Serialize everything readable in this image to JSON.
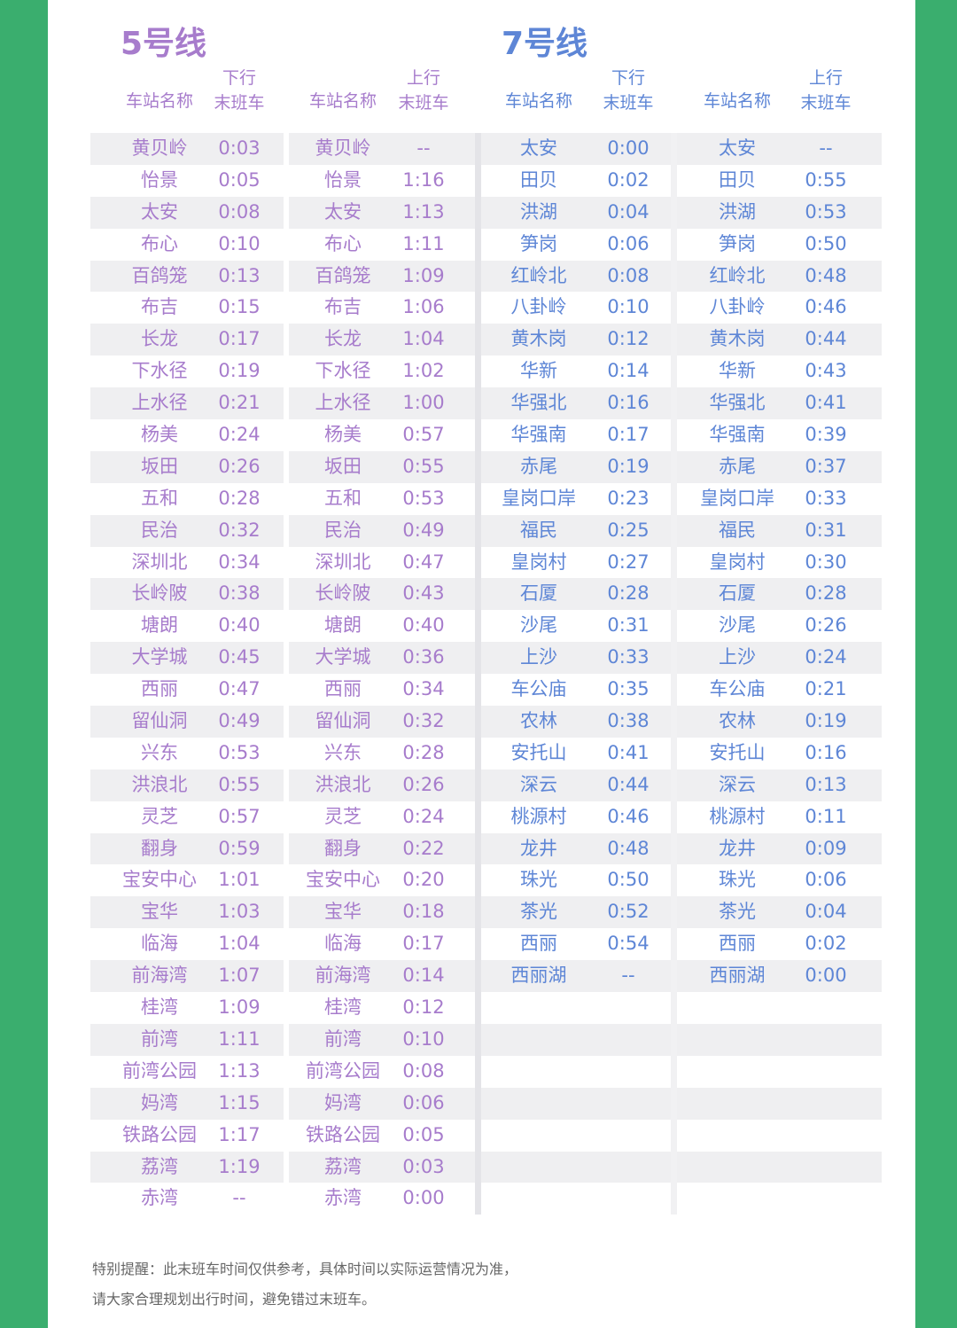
{
  "colors": {
    "frame": "#3aae6e",
    "line5": "#a77ccc",
    "line7": "#5e86d6"
  },
  "line5": {
    "title": "5号线",
    "down_label": "下行",
    "up_label": "上行",
    "station_header": "车站名称",
    "last_train_header": "末班车",
    "rows": [
      [
        "黄贝岭",
        "0:03",
        "--"
      ],
      [
        "怡景",
        "0:05",
        "1:16"
      ],
      [
        "太安",
        "0:08",
        "1:13"
      ],
      [
        "布心",
        "0:10",
        "1:11"
      ],
      [
        "百鸽笼",
        "0:13",
        "1:09"
      ],
      [
        "布吉",
        "0:15",
        "1:06"
      ],
      [
        "长龙",
        "0:17",
        "1:04"
      ],
      [
        "下水径",
        "0:19",
        "1:02"
      ],
      [
        "上水径",
        "0:21",
        "1:00"
      ],
      [
        "杨美",
        "0:24",
        "0:57"
      ],
      [
        "坂田",
        "0:26",
        "0:55"
      ],
      [
        "五和",
        "0:28",
        "0:53"
      ],
      [
        "民治",
        "0:32",
        "0:49"
      ],
      [
        "深圳北",
        "0:34",
        "0:47"
      ],
      [
        "长岭陂",
        "0:38",
        "0:43"
      ],
      [
        "塘朗",
        "0:40",
        "0:40"
      ],
      [
        "大学城",
        "0:45",
        "0:36"
      ],
      [
        "西丽",
        "0:47",
        "0:34"
      ],
      [
        "留仙洞",
        "0:49",
        "0:32"
      ],
      [
        "兴东",
        "0:53",
        "0:28"
      ],
      [
        "洪浪北",
        "0:55",
        "0:26"
      ],
      [
        "灵芝",
        "0:57",
        "0:24"
      ],
      [
        "翻身",
        "0:59",
        "0:22"
      ],
      [
        "宝安中心",
        "1:01",
        "0:20"
      ],
      [
        "宝华",
        "1:03",
        "0:18"
      ],
      [
        "临海",
        "1:04",
        "0:17"
      ],
      [
        "前海湾",
        "1:07",
        "0:14"
      ],
      [
        "桂湾",
        "1:09",
        "0:12"
      ],
      [
        "前湾",
        "1:11",
        "0:10"
      ],
      [
        "前湾公园",
        "1:13",
        "0:08"
      ],
      [
        "妈湾",
        "1:15",
        "0:06"
      ],
      [
        "铁路公园",
        "1:17",
        "0:05"
      ],
      [
        "荔湾",
        "1:19",
        "0:03"
      ],
      [
        "赤湾",
        "--",
        "0:00"
      ]
    ]
  },
  "line7": {
    "title": "7号线",
    "down_label": "下行",
    "up_label": "上行",
    "station_header": "车站名称",
    "last_train_header": "末班车",
    "rows": [
      [
        "太安",
        "0:00",
        "--"
      ],
      [
        "田贝",
        "0:02",
        "0:55"
      ],
      [
        "洪湖",
        "0:04",
        "0:53"
      ],
      [
        "笋岗",
        "0:06",
        "0:50"
      ],
      [
        "红岭北",
        "0:08",
        "0:48"
      ],
      [
        "八卦岭",
        "0:10",
        "0:46"
      ],
      [
        "黄木岗",
        "0:12",
        "0:44"
      ],
      [
        "华新",
        "0:14",
        "0:43"
      ],
      [
        "华强北",
        "0:16",
        "0:41"
      ],
      [
        "华强南",
        "0:17",
        "0:39"
      ],
      [
        "赤尾",
        "0:19",
        "0:37"
      ],
      [
        "皇岗口岸",
        "0:23",
        "0:33"
      ],
      [
        "福民",
        "0:25",
        "0:31"
      ],
      [
        "皇岗村",
        "0:27",
        "0:30"
      ],
      [
        "石厦",
        "0:28",
        "0:28"
      ],
      [
        "沙尾",
        "0:31",
        "0:26"
      ],
      [
        "上沙",
        "0:33",
        "0:24"
      ],
      [
        "车公庙",
        "0:35",
        "0:21"
      ],
      [
        "农林",
        "0:38",
        "0:19"
      ],
      [
        "安托山",
        "0:41",
        "0:16"
      ],
      [
        "深云",
        "0:44",
        "0:13"
      ],
      [
        "桃源村",
        "0:46",
        "0:11"
      ],
      [
        "龙井",
        "0:48",
        "0:09"
      ],
      [
        "珠光",
        "0:50",
        "0:06"
      ],
      [
        "茶光",
        "0:52",
        "0:04"
      ],
      [
        "西丽",
        "0:54",
        "0:02"
      ],
      [
        "西丽湖",
        "--",
        "0:00"
      ]
    ]
  },
  "notice": {
    "line1": "特别提醒：此末班车时间仅供参考，具体时间以实际运营情况为准，",
    "line2": "请大家合理规划出行时间，避免错过末班车。"
  }
}
